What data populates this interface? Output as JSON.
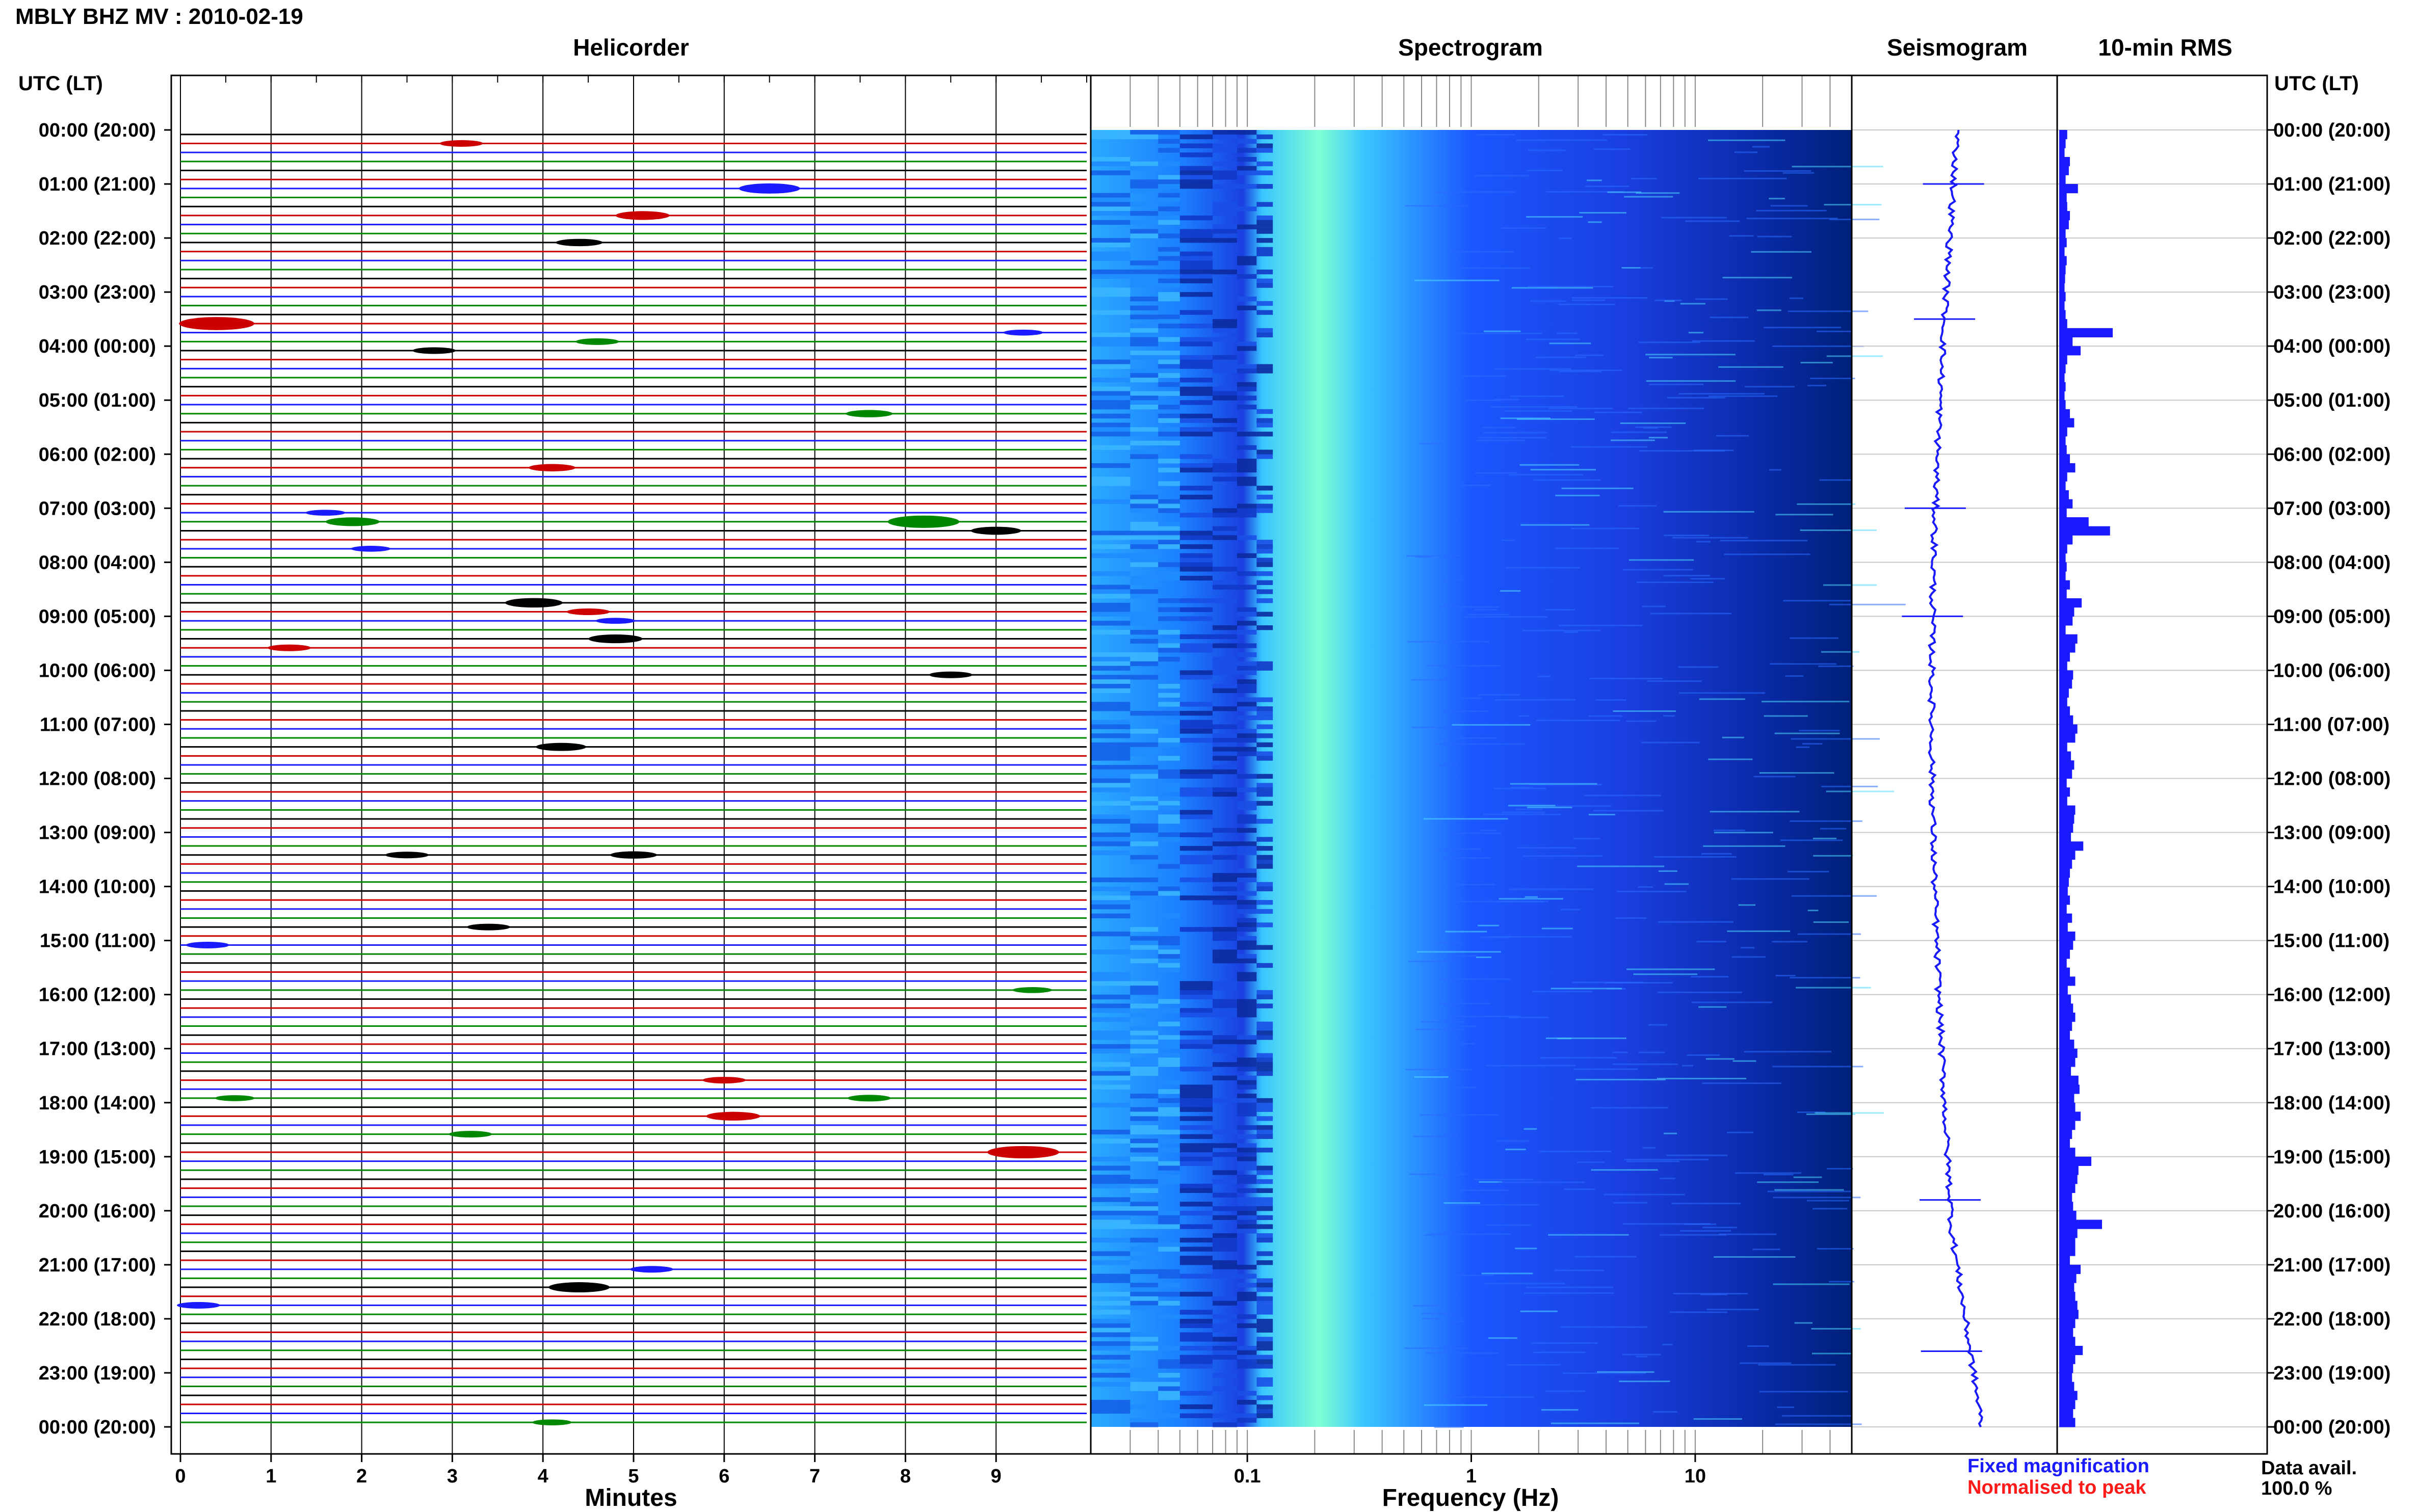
{
  "header": {
    "title": "MBLY BHZ MV : 2010-02-19",
    "utc_label_left": "UTC (LT)",
    "utc_label_right": "UTC (LT)"
  },
  "panels": {
    "helicorder": "Helicorder",
    "spectrogram": "Spectrogram",
    "seismogram": "Seismogram",
    "rms": "10-min RMS"
  },
  "axes": {
    "helicorder_xlabel": "Minutes",
    "spectrogram_xlabel": "Frequency (Hz)"
  },
  "legend": {
    "fixed": "Fixed magnification",
    "normalised": "Normalised to peak",
    "fixed_color": "#1a1aff",
    "normalised_color": "#ff1a1a"
  },
  "availability": {
    "label": "Data avail.",
    "value": "100.0 %"
  },
  "colors": {
    "trace_palette": [
      "#000000",
      "#cc0000",
      "#1a1aff",
      "#008800"
    ],
    "spectrogram_dark": "#00207a",
    "spectrogram_mid": "#1b57ff",
    "spectrogram_light": "#39c5ff",
    "spectrogram_peak": "#7fffd4",
    "seismogram": "#1a1aff",
    "rms_bar": "#1a1aff",
    "gridline": "#c8c8c8"
  },
  "chart_data": [
    {
      "type": "line",
      "name": "helicorder",
      "xlabel": "Minutes",
      "x_ticks": [
        "0",
        "1",
        "2",
        "3",
        "4",
        "5",
        "6",
        "7",
        "8",
        "9"
      ],
      "xlim": [
        0,
        10
      ],
      "row_labels": [
        "00:00 (20:00)",
        "01:00 (21:00)",
        "02:00 (22:00)",
        "03:00 (23:00)",
        "04:00 (00:00)",
        "05:00 (01:00)",
        "06:00 (02:00)",
        "07:00 (03:00)",
        "08:00 (04:00)",
        "09:00 (05:00)",
        "10:00 (06:00)",
        "11:00 (07:00)",
        "12:00 (08:00)",
        "13:00 (09:00)",
        "14:00 (10:00)",
        "15:00 (11:00)",
        "16:00 (12:00)",
        "17:00 (13:00)",
        "18:00 (14:00)",
        "19:00 (15:00)",
        "20:00 (16:00)",
        "21:00 (17:00)",
        "22:00 (18:00)",
        "23:00 (19:00)",
        "00:00 (20:00)"
      ],
      "lines_per_hour": 6,
      "events": [
        {
          "row": 1,
          "minute": 3.1,
          "amp": 0.5
        },
        {
          "row": 6,
          "minute": 6.5,
          "amp": 1.0
        },
        {
          "row": 9,
          "minute": 5.1,
          "amp": 0.8
        },
        {
          "row": 12,
          "minute": 4.4,
          "amp": 0.6
        },
        {
          "row": 21,
          "minute": 0.4,
          "amp": 1.4
        },
        {
          "row": 22,
          "minute": 9.3,
          "amp": 0.4
        },
        {
          "row": 23,
          "minute": 4.6,
          "amp": 0.5
        },
        {
          "row": 24,
          "minute": 2.8,
          "amp": 0.5
        },
        {
          "row": 31,
          "minute": 7.6,
          "amp": 0.6
        },
        {
          "row": 37,
          "minute": 4.1,
          "amp": 0.6
        },
        {
          "row": 42,
          "minute": 1.6,
          "amp": 0.4
        },
        {
          "row": 43,
          "minute": 1.9,
          "amp": 0.8
        },
        {
          "row": 43,
          "minute": 8.2,
          "amp": 1.3
        },
        {
          "row": 44,
          "minute": 9.0,
          "amp": 0.7
        },
        {
          "row": 46,
          "minute": 2.1,
          "amp": 0.4
        },
        {
          "row": 52,
          "minute": 3.9,
          "amp": 0.9
        },
        {
          "row": 53,
          "minute": 4.5,
          "amp": 0.5
        },
        {
          "row": 54,
          "minute": 4.8,
          "amp": 0.4
        },
        {
          "row": 56,
          "minute": 4.8,
          "amp": 0.8
        },
        {
          "row": 57,
          "minute": 1.2,
          "amp": 0.5
        },
        {
          "row": 60,
          "minute": 8.5,
          "amp": 0.5
        },
        {
          "row": 68,
          "minute": 4.2,
          "amp": 0.7
        },
        {
          "row": 80,
          "minute": 2.5,
          "amp": 0.5
        },
        {
          "row": 80,
          "minute": 5.0,
          "amp": 0.6
        },
        {
          "row": 88,
          "minute": 3.4,
          "amp": 0.5
        },
        {
          "row": 90,
          "minute": 0.3,
          "amp": 0.5
        },
        {
          "row": 95,
          "minute": 9.4,
          "amp": 0.4
        },
        {
          "row": 105,
          "minute": 6.0,
          "amp": 0.5
        },
        {
          "row": 107,
          "minute": 0.6,
          "amp": 0.4
        },
        {
          "row": 107,
          "minute": 7.6,
          "amp": 0.5
        },
        {
          "row": 109,
          "minute": 6.1,
          "amp": 0.8
        },
        {
          "row": 111,
          "minute": 3.2,
          "amp": 0.5
        },
        {
          "row": 113,
          "minute": 9.3,
          "amp": 1.3
        },
        {
          "row": 126,
          "minute": 5.2,
          "amp": 0.5
        },
        {
          "row": 128,
          "minute": 4.4,
          "amp": 1.0
        },
        {
          "row": 130,
          "minute": 0.2,
          "amp": 0.5
        },
        {
          "row": 143,
          "minute": 4.1,
          "amp": 0.4
        }
      ]
    },
    {
      "type": "heatmap",
      "name": "spectrogram",
      "xlabel": "Frequency (Hz)",
      "x_scale": "log",
      "x_ticks": [
        0.1,
        1,
        10
      ],
      "x_tick_labels": [
        "0.1",
        "1",
        "10"
      ],
      "xlim": [
        0.02,
        50
      ],
      "peak_band_hz": [
        0.15,
        0.35
      ],
      "low_frequency_floor_hz": 0.13
    },
    {
      "type": "line",
      "name": "seismogram",
      "description_of_trend": "single 24h trace drifting left then right",
      "spikes_hour": [
        1.0,
        3.5,
        7.0,
        9.0,
        19.8,
        22.6
      ]
    },
    {
      "type": "bar",
      "name": "10-min RMS",
      "orientation": "horizontal",
      "bins": 144,
      "relative_values": [
        0.15,
        0.12,
        0.1,
        0.2,
        0.18,
        0.12,
        0.35,
        0.14,
        0.15,
        0.2,
        0.18,
        0.12,
        0.14,
        0.1,
        0.14,
        0.12,
        0.11,
        0.1,
        0.12,
        0.1,
        0.12,
        0.15,
        1.0,
        0.25,
        0.4,
        0.15,
        0.12,
        0.1,
        0.12,
        0.1,
        0.12,
        0.2,
        0.28,
        0.15,
        0.12,
        0.14,
        0.2,
        0.3,
        0.15,
        0.12,
        0.18,
        0.25,
        0.14,
        0.55,
        0.95,
        0.25,
        0.15,
        0.12,
        0.14,
        0.12,
        0.2,
        0.14,
        0.42,
        0.28,
        0.25,
        0.12,
        0.34,
        0.3,
        0.2,
        0.15,
        0.26,
        0.24,
        0.18,
        0.15,
        0.2,
        0.26,
        0.34,
        0.3,
        0.15,
        0.22,
        0.28,
        0.24,
        0.14,
        0.2,
        0.15,
        0.3,
        0.28,
        0.26,
        0.22,
        0.45,
        0.3,
        0.24,
        0.2,
        0.18,
        0.16,
        0.2,
        0.14,
        0.24,
        0.16,
        0.3,
        0.26,
        0.2,
        0.14,
        0.2,
        0.3,
        0.16,
        0.22,
        0.26,
        0.3,
        0.24,
        0.2,
        0.28,
        0.34,
        0.3,
        0.22,
        0.36,
        0.38,
        0.28,
        0.3,
        0.4,
        0.3,
        0.24,
        0.2,
        0.3,
        0.6,
        0.36,
        0.34,
        0.3,
        0.24,
        0.26,
        0.32,
        0.8,
        0.34,
        0.3,
        0.3,
        0.2,
        0.4,
        0.32,
        0.28,
        0.3,
        0.34,
        0.36,
        0.3,
        0.26,
        0.3,
        0.44,
        0.3,
        0.26,
        0.24,
        0.28,
        0.34,
        0.3,
        0.26,
        0.3
      ]
    }
  ]
}
